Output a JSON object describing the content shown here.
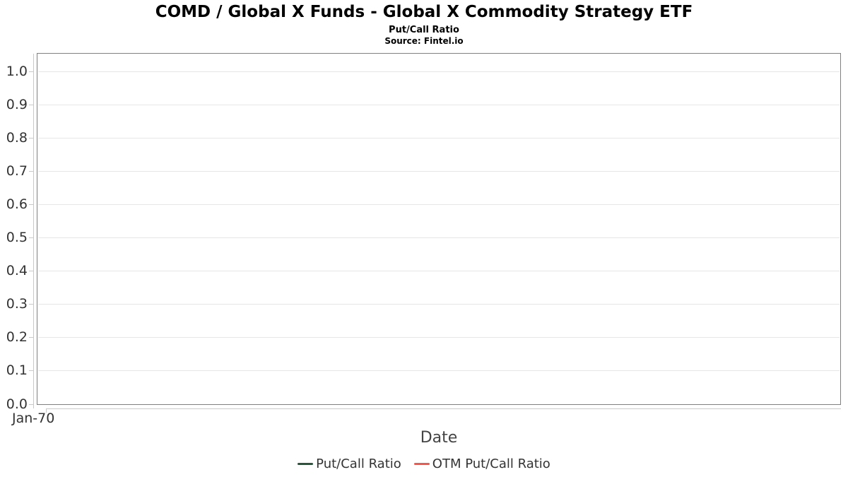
{
  "chart_data": {
    "type": "line",
    "title": "COMD / Global X Funds - Global X Commodity Strategy ETF",
    "subtitle": "Put/Call Ratio",
    "source": "Source: Fintel.io",
    "xlabel": "Date",
    "x_ticks": [
      "Jan-70"
    ],
    "y_ticks": [
      "1.0",
      "0.9",
      "0.8",
      "0.7",
      "0.6",
      "0.5",
      "0.4",
      "0.3",
      "0.2",
      "0.1",
      "0.0"
    ],
    "ylim": [
      0.0,
      1.05
    ],
    "grid": "horizontal-only",
    "legend_position": "bottom-center",
    "plot_empty": true,
    "series": [
      {
        "name": "Put/Call Ratio",
        "color": "#26573a",
        "values": []
      },
      {
        "name": "OTM Put/Call Ratio",
        "color": "#fa554b",
        "values": []
      }
    ],
    "colors": {
      "grid": "#e6e6e6",
      "plot_border": "#808080",
      "axis_line": "#c9c9c9",
      "axis_text": "#333333",
      "axis_title_text": "#444444",
      "title_text": "#000000",
      "legend_text": "#333333"
    }
  }
}
